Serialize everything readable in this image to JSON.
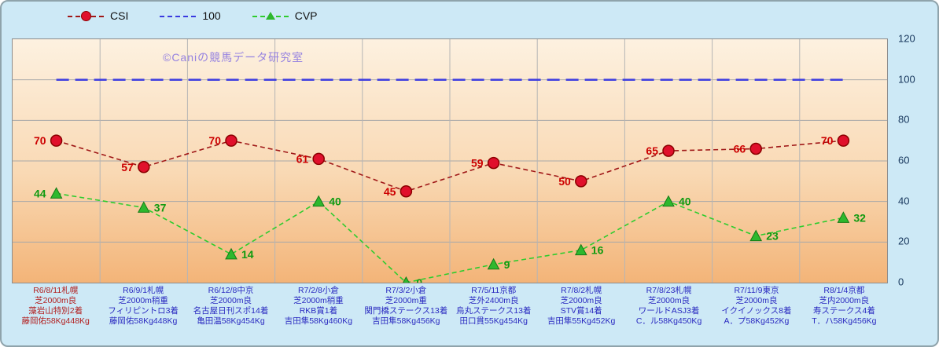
{
  "watermark": "©Caniの競馬データ研究室",
  "legend": [
    {
      "label": "CSI"
    },
    {
      "label": "100"
    },
    {
      "label": "CVP"
    }
  ],
  "colors": {
    "csi_line": "#a01818",
    "csi_marker": "#e0102c",
    "csi_value_label": "#cc0000",
    "hundred_line": "#3a3ae0",
    "cvp_line": "#2ecc2e",
    "cvp_marker": "#2eb82e",
    "cvp_value_label": "#0f9a0f",
    "frame_background": "#cde9f6",
    "plot_gradient_top": "#fdf1e0",
    "plot_gradient_bottom": "#f3b478",
    "x_label_blue": "#2a2ac0",
    "x_label_red": "#b22020",
    "y_label": "#16365c",
    "watermark": "#9582e0"
  },
  "chart_data": {
    "type": "line",
    "ylim": [
      0,
      120
    ],
    "yticks": [
      0,
      20,
      40,
      60,
      80,
      100,
      120
    ],
    "grid": true,
    "legend_position": "top",
    "y_axis_side": "right",
    "categories": [
      {
        "color": "#b22020",
        "lines": [
          "R6/8/11札幌",
          "芝2000m良",
          "藻岩山特別2着",
          "藤岡佑58Kg448Kg"
        ]
      },
      {
        "color": "#2a2ac0",
        "lines": [
          "R6/9/1札幌",
          "芝2000m稍重",
          "フィリピントロ3着",
          "藤岡佑58Kg448Kg"
        ]
      },
      {
        "color": "#2a2ac0",
        "lines": [
          "R6/12/8中京",
          "芝2000m良",
          "名古屋日刊スポ14着",
          "亀田温58Kg454Kg"
        ]
      },
      {
        "color": "#2a2ac0",
        "lines": [
          "R7/2/8小倉",
          "芝2000m稍重",
          "RKB賞1着",
          "吉田隼58Kg460Kg"
        ]
      },
      {
        "color": "#2a2ac0",
        "lines": [
          "R7/3/2小倉",
          "芝2000m重",
          "関門橋ステークス13着",
          "吉田隼58Kg456Kg"
        ]
      },
      {
        "color": "#2a2ac0",
        "lines": [
          "R7/5/11京都",
          "芝外2400m良",
          "烏丸ステークス13着",
          "田口貫55Kg454Kg"
        ]
      },
      {
        "color": "#2a2ac0",
        "lines": [
          "R7/8/2札幌",
          "芝2000m良",
          "STV賞14着",
          "吉田隼55Kg452Kg"
        ]
      },
      {
        "color": "#2a2ac0",
        "lines": [
          "R7/8/23札幌",
          "芝2000m良",
          "ワールドASJ3着",
          "C．ル58Kg450Kg"
        ]
      },
      {
        "color": "#2a2ac0",
        "lines": [
          "R7/11/9東京",
          "芝2000m良",
          "イクイノックス8着",
          "A．プ58Kg452Kg"
        ]
      },
      {
        "color": "#2a2ac0",
        "lines": [
          "R8/1/4京都",
          "芝内2000m良",
          "寿ステークス4着",
          "T．ハ58Kg456Kg"
        ]
      }
    ],
    "series": [
      {
        "name": "CSI",
        "style": "dashed-line",
        "marker": "circle",
        "line_color": "#a01818",
        "marker_color": "#e0102c",
        "marker_edge": "#8b0000",
        "label_color": "#cc0000",
        "values": [
          70,
          57,
          70,
          61,
          45,
          59,
          50,
          65,
          66,
          70
        ]
      },
      {
        "name": "100",
        "style": "dashed-line",
        "marker": "none",
        "line_color": "#3a3ae0",
        "values": [
          100,
          100,
          100,
          100,
          100,
          100,
          100,
          100,
          100,
          100
        ]
      },
      {
        "name": "CVP",
        "style": "dashed-line",
        "marker": "triangle",
        "line_color": "#2ecc2e",
        "marker_color": "#2eb82e",
        "marker_edge": "#157a15",
        "label_color": "#0f9a0f",
        "values": [
          44,
          37,
          14,
          40,
          0,
          9,
          16,
          40,
          23,
          32
        ]
      }
    ]
  }
}
